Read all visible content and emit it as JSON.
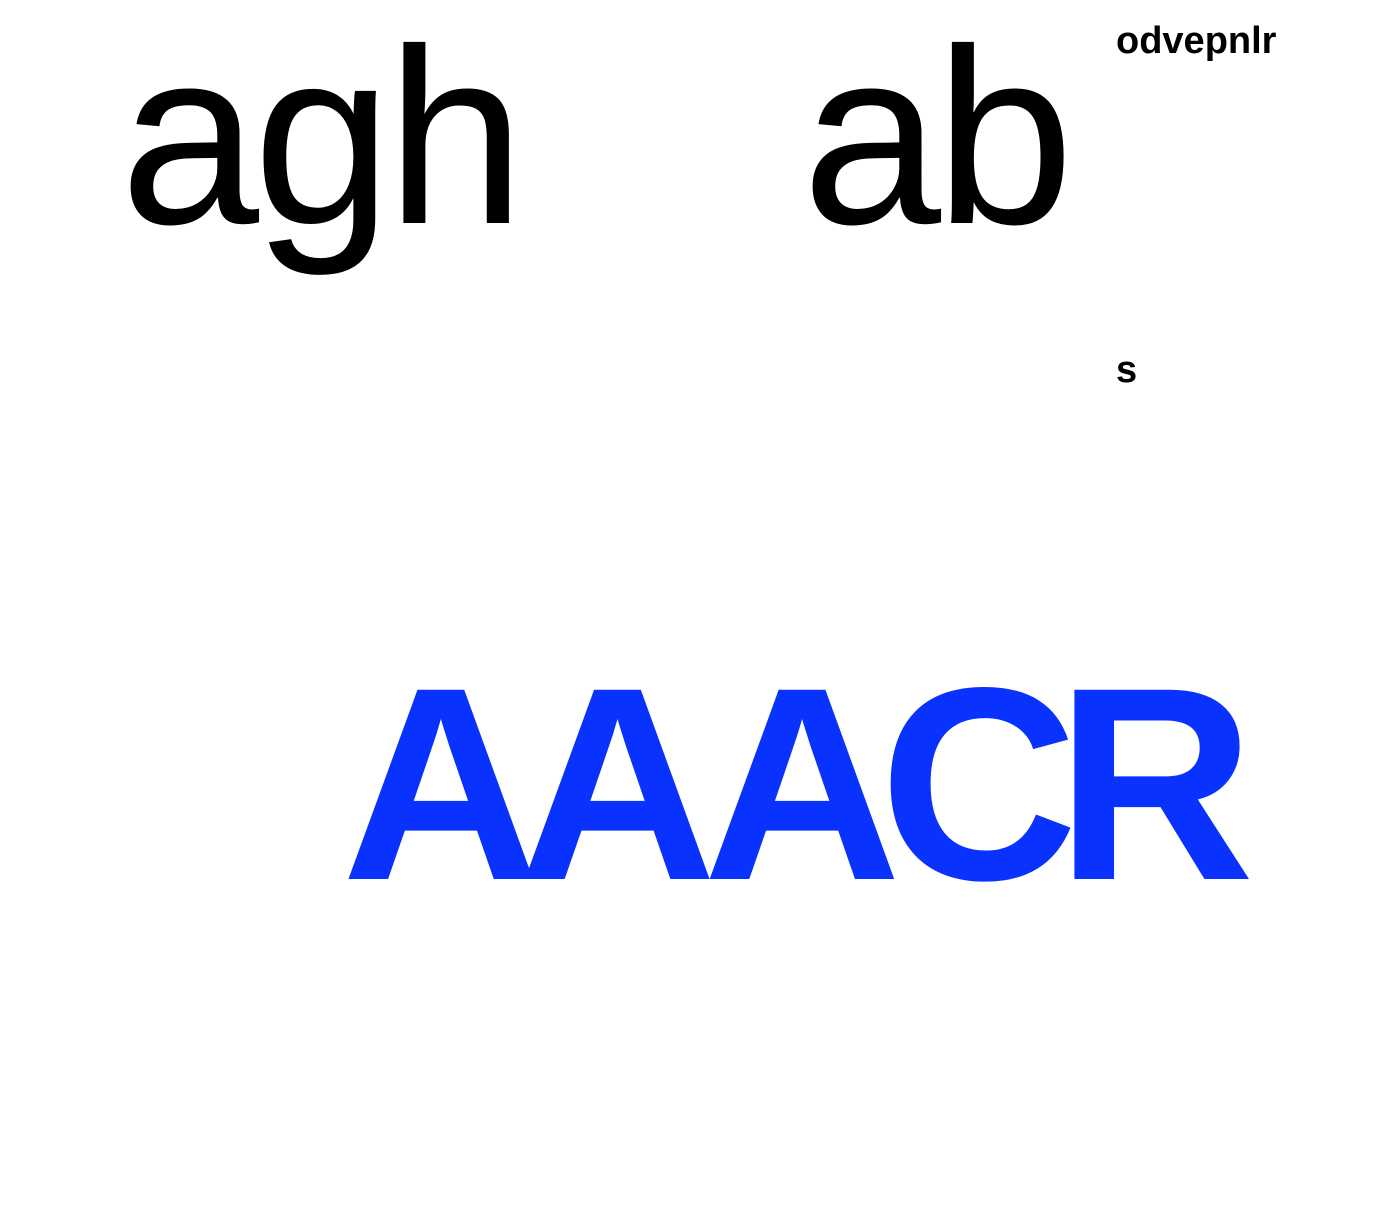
{
  "canvas": {
    "background": "#ffffff"
  },
  "words": {
    "agh": "agh",
    "ab": "ab",
    "odvepnlr": "odvepnlr",
    "s": "s",
    "caps_1": "AA",
    "caps_2": "ACR"
  },
  "colors": {
    "primary_text": "#000000",
    "caps_text": "#0a32ff"
  }
}
